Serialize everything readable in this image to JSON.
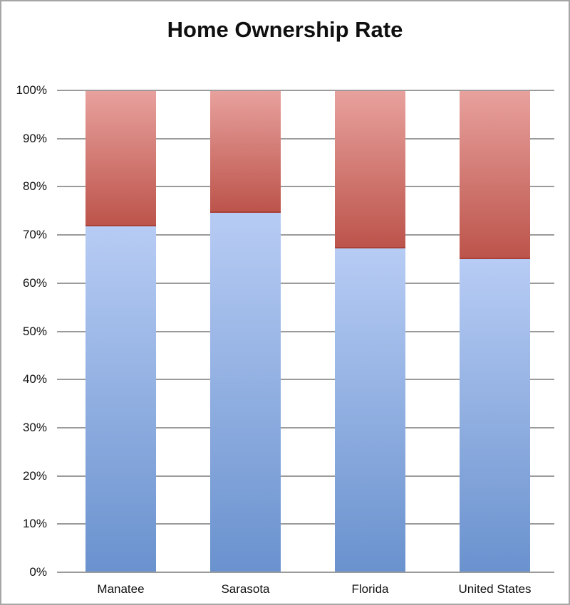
{
  "window": {
    "background": "#ffffff",
    "border_color": "#a6a6a6"
  },
  "chart_data": {
    "type": "bar",
    "stacked": true,
    "title": "Home Ownership Rate",
    "categories": [
      "Manatee",
      "Sarasota",
      "Florida",
      "United States"
    ],
    "series": [
      {
        "name": "blue",
        "values": [
          71.8,
          74.6,
          67.2,
          65.0
        ],
        "color_top": "#b7ccf4",
        "color_bottom": "#6a92ce"
      },
      {
        "name": "red",
        "values": [
          28.2,
          25.4,
          32.8,
          35.0
        ],
        "color_top": "#e8a19d",
        "color_bottom": "#bc544b",
        "edge_color": "#a84138"
      }
    ],
    "xlabel": "",
    "ylabel": "",
    "ylim": [
      0,
      100
    ],
    "y_ticks": [
      "0%",
      "10%",
      "20%",
      "30%",
      "40%",
      "50%",
      "60%",
      "70%",
      "80%",
      "90%",
      "100%"
    ],
    "grid": true,
    "legend": "none",
    "gridline_color": "#9b9b9b",
    "axis_line_color": "#9b9b9b"
  }
}
